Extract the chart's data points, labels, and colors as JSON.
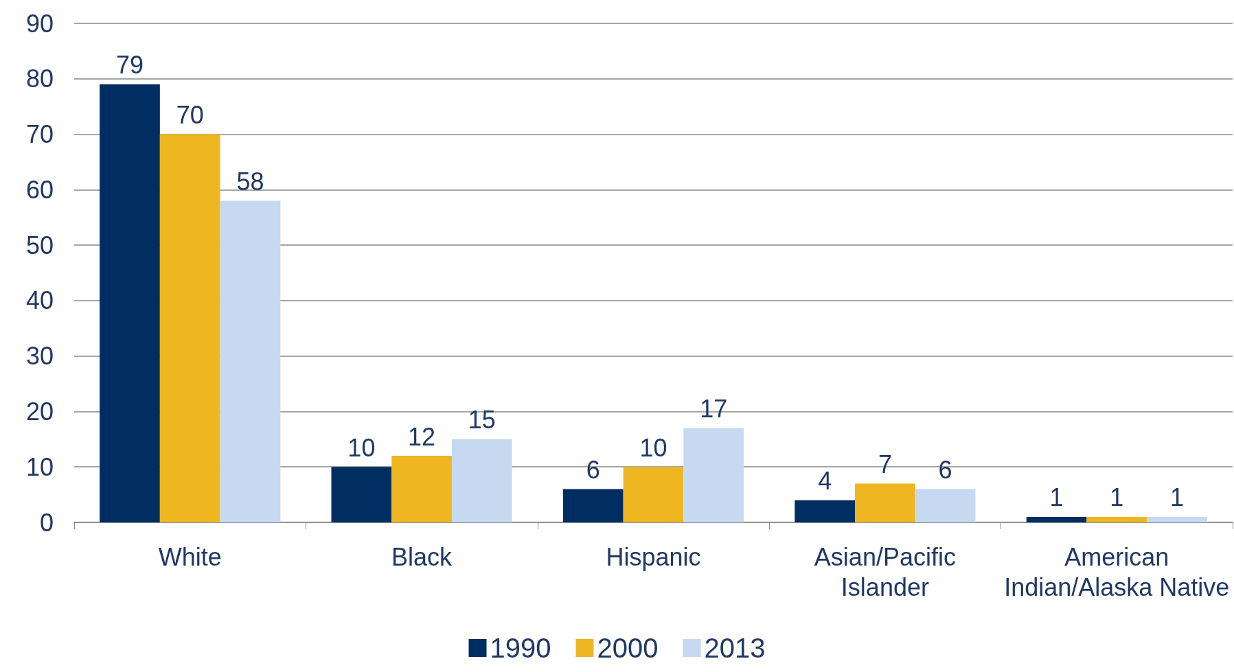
{
  "chart_data": {
    "type": "bar",
    "categories": [
      "White",
      "Black",
      "Hispanic",
      "Asian/Pacific\nIslander",
      "American\nIndian/Alaska Native"
    ],
    "series": [
      {
        "name": "1990",
        "color": "#002d62",
        "values": [
          79,
          10,
          6,
          4,
          1
        ]
      },
      {
        "name": "2000",
        "color": "#eeb722",
        "values": [
          70,
          12,
          10,
          7,
          1
        ]
      },
      {
        "name": "2013",
        "color": "#c6d9f0",
        "values": [
          58,
          15,
          17,
          6,
          1
        ]
      }
    ],
    "ylim": [
      0,
      90
    ],
    "yticks": [
      0,
      10,
      20,
      30,
      40,
      50,
      60,
      70,
      80,
      90
    ],
    "grid": "y",
    "legend": "bottom",
    "data_labels": true
  }
}
